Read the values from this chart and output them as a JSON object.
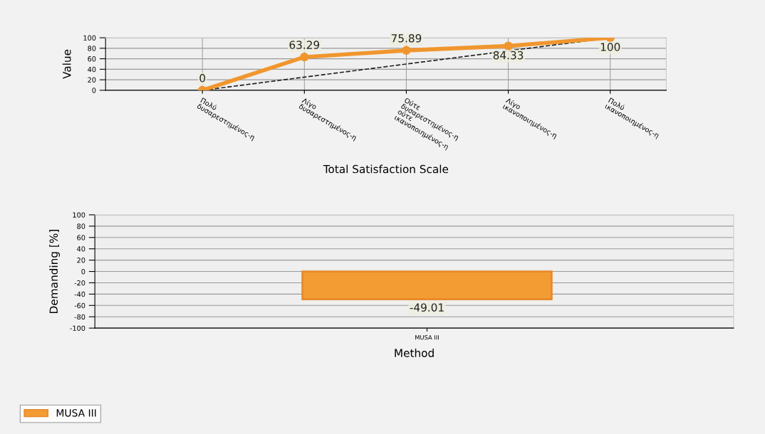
{
  "chart_data": [
    {
      "type": "line",
      "xlabel": "Total Satisfaction Scale",
      "ylabel": "Value",
      "categories": [
        "Πολύ\nδυσαρεστημένος-η",
        "Λίγο\nδυσαρεστημένος-η",
        "Ούτε\nδυσαρεστημένος-η\nούτε\nικανοποιημένος-η",
        "Λίγο\nικανοποιημένος-η",
        "Πολύ\nικανοποιημένος-η"
      ],
      "series": [
        {
          "color": "#f0962e",
          "values": [
            0,
            63.29,
            75.89,
            84.33,
            100
          ],
          "value_labels": [
            "0",
            "63.29",
            "75.89",
            "84.33",
            "100"
          ],
          "marker": "circle"
        },
        {
          "color": "#222222",
          "values": [
            0,
            25,
            50,
            75,
            100
          ],
          "marker": "none",
          "line_style": "dashed"
        }
      ],
      "ylim": [
        0,
        100
      ],
      "yticks": [
        0,
        20,
        40,
        60,
        80,
        100
      ],
      "grid": true,
      "line_style": "solid"
    },
    {
      "type": "bar",
      "xlabel": "Method",
      "ylabel": "Demanding [%]",
      "categories": [
        "MUSA III"
      ],
      "series": [
        {
          "name": "MUSA III",
          "color": "#f39c34",
          "values": [
            -49.01
          ],
          "value_labels": [
            "-49.01"
          ]
        }
      ],
      "ylim": [
        -100,
        100
      ],
      "yticks": [
        -100,
        -80,
        -60,
        -40,
        -20,
        0,
        20,
        40,
        60,
        80,
        100
      ],
      "grid": "y",
      "legend": "bottom left"
    }
  ]
}
